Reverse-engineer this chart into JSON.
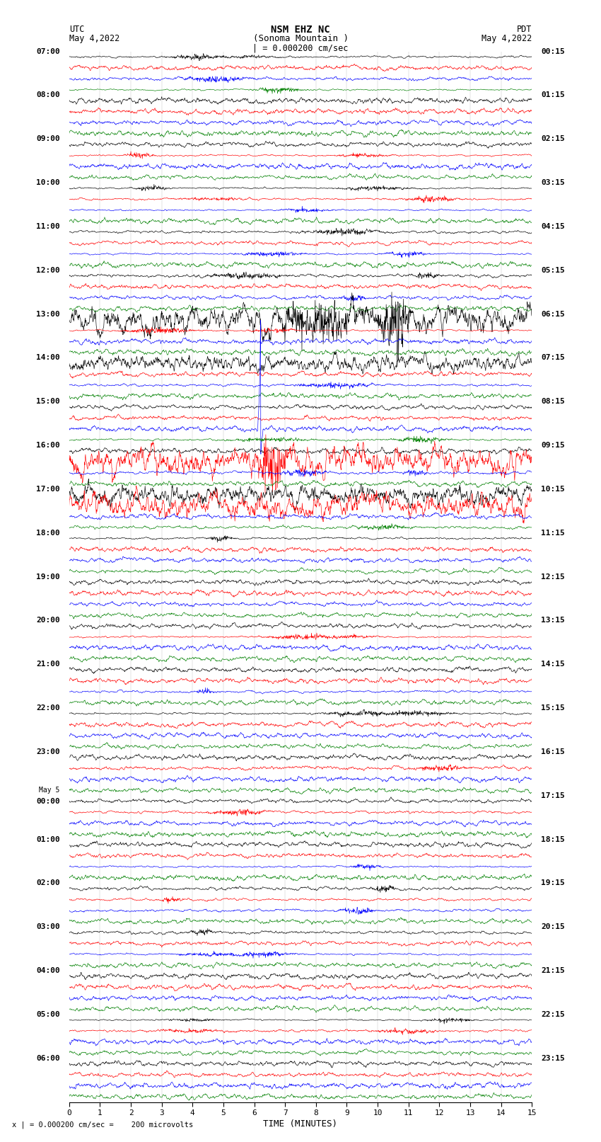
{
  "title_line1": "NSM EHZ NC",
  "title_line2": "(Sonoma Mountain )",
  "title_scale": "| = 0.000200 cm/sec",
  "label_utc": "UTC",
  "label_pdt": "PDT",
  "date_left": "May 4,2022",
  "date_right": "May 4,2022",
  "xlabel": "TIME (MINUTES)",
  "footer": "x | = 0.000200 cm/sec =    200 microvolts",
  "utc_labels": [
    "07:00",
    "08:00",
    "09:00",
    "10:00",
    "11:00",
    "12:00",
    "13:00",
    "14:00",
    "15:00",
    "16:00",
    "17:00",
    "18:00",
    "19:00",
    "20:00",
    "21:00",
    "22:00",
    "23:00",
    "May 5\n00:00",
    "01:00",
    "02:00",
    "03:00",
    "04:00",
    "05:00",
    "06:00"
  ],
  "pdt_labels": [
    "00:15",
    "01:15",
    "02:15",
    "03:15",
    "04:15",
    "05:15",
    "06:15",
    "07:15",
    "08:15",
    "09:15",
    "10:15",
    "11:15",
    "12:15",
    "13:15",
    "14:15",
    "15:15",
    "16:15",
    "17:15",
    "18:15",
    "19:15",
    "20:15",
    "21:15",
    "22:15",
    "23:15"
  ],
  "n_rows": 24,
  "traces_per_row": 4,
  "colors": [
    "black",
    "red",
    "blue",
    "green"
  ],
  "xlim": [
    0,
    15
  ],
  "xticks": [
    0,
    1,
    2,
    3,
    4,
    5,
    6,
    7,
    8,
    9,
    10,
    11,
    12,
    13,
    14,
    15
  ],
  "background_color": "white",
  "noise_seed": 42
}
